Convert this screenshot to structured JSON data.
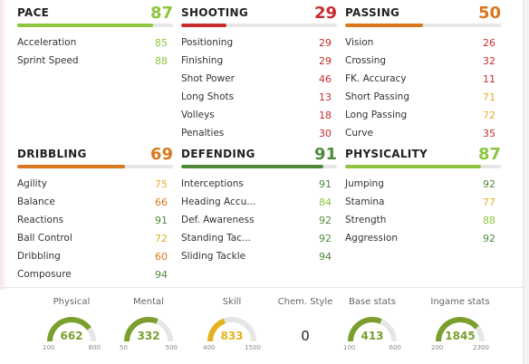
{
  "colors": {
    "green_light": "#8cc63f",
    "green_dark": "#4f8a3a",
    "yellow": "#e6ae2a",
    "orange": "#d9771e",
    "red": "#c62c2c",
    "gauge_green": "#7a9f2d",
    "gauge_yellow": "#e2b21d",
    "track": "#e6e6e6"
  },
  "categories": [
    {
      "key": "pace",
      "title": "PACE",
      "score": "87",
      "color": "#8cc63f",
      "attrs": [
        {
          "label": "Acceleration",
          "value": "85",
          "color": "#8cc63f"
        },
        {
          "label": "Sprint Speed",
          "value": "88",
          "color": "#8cc63f"
        }
      ]
    },
    {
      "key": "shooting",
      "title": "SHOOTING",
      "score": "29",
      "color": "#c62c2c",
      "attrs": [
        {
          "label": "Positioning",
          "value": "29",
          "color": "#c62c2c"
        },
        {
          "label": "Finishing",
          "value": "29",
          "color": "#c62c2c"
        },
        {
          "label": "Shot Power",
          "value": "46",
          "color": "#c62c2c"
        },
        {
          "label": "Long Shots",
          "value": "13",
          "color": "#c62c2c"
        },
        {
          "label": "Volleys",
          "value": "18",
          "color": "#c62c2c"
        },
        {
          "label": "Penalties",
          "value": "30",
          "color": "#c62c2c"
        }
      ]
    },
    {
      "key": "passing",
      "title": "PASSING",
      "score": "50",
      "color": "#d9771e",
      "attrs": [
        {
          "label": "Vision",
          "value": "26",
          "color": "#c62c2c"
        },
        {
          "label": "Crossing",
          "value": "32",
          "color": "#c62c2c"
        },
        {
          "label": "FK. Accuracy",
          "value": "11",
          "color": "#c62c2c"
        },
        {
          "label": "Short Passing",
          "value": "71",
          "color": "#e6ae2a"
        },
        {
          "label": "Long Passing",
          "value": "72",
          "color": "#e6ae2a"
        },
        {
          "label": "Curve",
          "value": "35",
          "color": "#c62c2c"
        }
      ]
    },
    {
      "key": "dribbling",
      "title": "DRIBBLING",
      "score": "69",
      "color": "#d9771e",
      "attrs": [
        {
          "label": "Agility",
          "value": "75",
          "color": "#e6ae2a"
        },
        {
          "label": "Balance",
          "value": "66",
          "color": "#d9771e"
        },
        {
          "label": "Reactions",
          "value": "91",
          "color": "#4f8a3a"
        },
        {
          "label": "Ball Control",
          "value": "72",
          "color": "#e6ae2a"
        },
        {
          "label": "Dribbling",
          "value": "60",
          "color": "#d9771e"
        },
        {
          "label": "Composure",
          "value": "94",
          "color": "#4f8a3a"
        }
      ]
    },
    {
      "key": "defending",
      "title": "DEFENDING",
      "score": "91",
      "color": "#4f8a3a",
      "attrs": [
        {
          "label": "Interceptions",
          "value": "91",
          "color": "#4f8a3a"
        },
        {
          "label": "Heading Accu...",
          "value": "84",
          "color": "#8cc63f"
        },
        {
          "label": "Def. Awareness",
          "value": "92",
          "color": "#4f8a3a"
        },
        {
          "label": "Standing Tac...",
          "value": "92",
          "color": "#4f8a3a"
        },
        {
          "label": "Sliding Tackle",
          "value": "94",
          "color": "#4f8a3a"
        }
      ]
    },
    {
      "key": "physicality",
      "title": "PHYSICALITY",
      "score": "87",
      "color": "#8cc63f",
      "attrs": [
        {
          "label": "Jumping",
          "value": "92",
          "color": "#4f8a3a"
        },
        {
          "label": "Stamina",
          "value": "77",
          "color": "#e6ae2a"
        },
        {
          "label": "Strength",
          "value": "88",
          "color": "#8cc63f"
        },
        {
          "label": "Aggression",
          "value": "92",
          "color": "#4f8a3a"
        }
      ]
    }
  ],
  "gauges": [
    {
      "key": "physical",
      "label": "Physical",
      "value": "662",
      "min": "100",
      "max": "800",
      "fraction": 0.8,
      "color": "#7a9f2d"
    },
    {
      "key": "mental",
      "label": "Mental",
      "value": "332",
      "min": "50",
      "max": "500",
      "fraction": 0.63,
      "color": "#7a9f2d"
    },
    {
      "key": "skill",
      "label": "Skill",
      "value": "833",
      "min": "400",
      "max": "1500",
      "fraction": 0.39,
      "color": "#e2b21d"
    },
    {
      "key": "chem-style",
      "label": "Chem. Style",
      "value": "0",
      "plain": true
    },
    {
      "key": "base-stats",
      "label": "Base stats",
      "value": "413",
      "min": "100",
      "max": "600",
      "fraction": 0.63,
      "color": "#7a9f2d"
    },
    {
      "key": "ingame-stats",
      "label": "Ingame stats",
      "value": "1845",
      "min": "200",
      "max": "2300",
      "fraction": 0.78,
      "color": "#7a9f2d"
    }
  ]
}
